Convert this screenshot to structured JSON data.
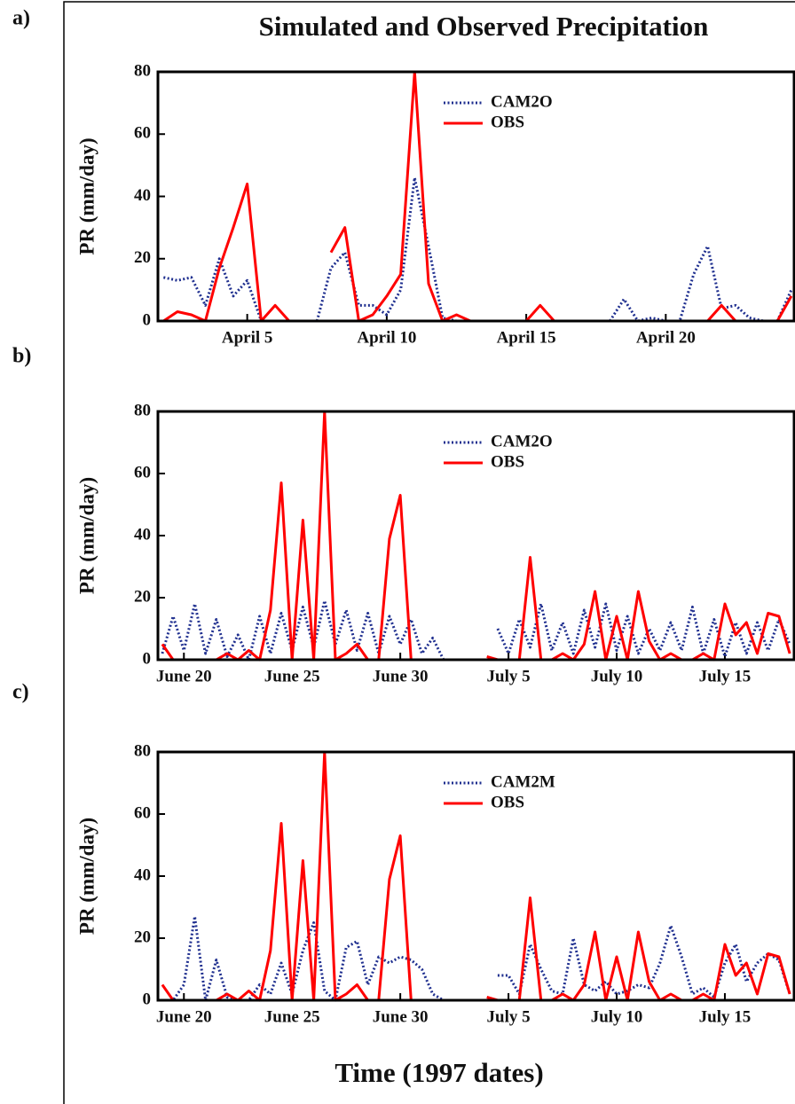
{
  "chart_data": [
    {
      "type": "line",
      "panel_label": "a)",
      "title": "Simulated and Observed Precipitation",
      "ylabel": "PR (mm/day)",
      "x": [
        2,
        2.5,
        3,
        3.5,
        4,
        4.5,
        5,
        5.5,
        6,
        6.5,
        7,
        7.5,
        8,
        8.5,
        9,
        9.5,
        10,
        10.5,
        11,
        11.5,
        12,
        12.5,
        13,
        13.5,
        14,
        14.5,
        15,
        15.5,
        16,
        16.5,
        17,
        17.5,
        18,
        18.5,
        19,
        19.5,
        20,
        20.5,
        21,
        21.5,
        22,
        22.5,
        23,
        23.5,
        24,
        24.5
      ],
      "series": [
        {
          "name": "CAM2O",
          "color": "#1f2f8f",
          "style": "dotted",
          "values": [
            14,
            13,
            14,
            5,
            20,
            8,
            13,
            0,
            null,
            null,
            null,
            0,
            17,
            22,
            5,
            5,
            2,
            10,
            46,
            24,
            1,
            0,
            0,
            null,
            null,
            null,
            null,
            null,
            null,
            null,
            null,
            null,
            0,
            7,
            0,
            1,
            0,
            0,
            15,
            24,
            4,
            5,
            1,
            0,
            0,
            10
          ]
        },
        {
          "name": "OBS",
          "color": "#ff0000",
          "style": "solid",
          "values": [
            0,
            3,
            2,
            0,
            17,
            30,
            44,
            0,
            5,
            0,
            null,
            null,
            22,
            30,
            0,
            2,
            8,
            15,
            80,
            12,
            0,
            2,
            0,
            null,
            null,
            null,
            0,
            5,
            0,
            null,
            null,
            null,
            null,
            null,
            null,
            null,
            0,
            0,
            0,
            0,
            5,
            0,
            null,
            null,
            0,
            8
          ]
        }
      ],
      "xlim": [
        1.8,
        24.6
      ],
      "ylim": [
        0,
        80
      ],
      "yticks": [
        0,
        20,
        40,
        60,
        80
      ],
      "xticks": [
        {
          "value": 5,
          "label": "April  5"
        },
        {
          "value": 10,
          "label": "April 10"
        },
        {
          "value": 15,
          "label": "April 15"
        },
        {
          "value": 20,
          "label": "April 20"
        }
      ],
      "legend": "upper center"
    },
    {
      "type": "line",
      "panel_label": "b)",
      "ylabel": "PR (mm/day)",
      "x": [
        19,
        19.5,
        20,
        20.5,
        21,
        21.5,
        22,
        22.5,
        23,
        23.5,
        24,
        24.5,
        25,
        25.5,
        26,
        26.5,
        27,
        27.5,
        28,
        28.5,
        29,
        29.5,
        30,
        30.5,
        31,
        31.5,
        32,
        32.5,
        33,
        33.5,
        34,
        34.5,
        35,
        35.5,
        36,
        36.5,
        37,
        37.5,
        38,
        38.5,
        39,
        39.5,
        40,
        40.5,
        41,
        41.5,
        42,
        42.5,
        43,
        43.5,
        44,
        44.5,
        45,
        45.5,
        46,
        46.5,
        47,
        47.5,
        48
      ],
      "series": [
        {
          "name": "CAM2O",
          "color": "#1f2f8f",
          "style": "dotted",
          "values": [
            2,
            14,
            3,
            18,
            2,
            13,
            1,
            8,
            0,
            14,
            2,
            15,
            3,
            17,
            4,
            19,
            5,
            16,
            3,
            15,
            2,
            14,
            5,
            13,
            2,
            7,
            0,
            null,
            null,
            null,
            null,
            10,
            2,
            13,
            4,
            18,
            3,
            12,
            2,
            16,
            4,
            18,
            3,
            14,
            2,
            10,
            3,
            12,
            3,
            17,
            2,
            13,
            1,
            12,
            2,
            12,
            3,
            13,
            5
          ]
        },
        {
          "name": "OBS",
          "color": "#ff0000",
          "style": "solid",
          "values": [
            5,
            0,
            0,
            0,
            0,
            0,
            2,
            0,
            3,
            0,
            16,
            57,
            0,
            45,
            0,
            80,
            0,
            2,
            5,
            0,
            0,
            39,
            53,
            0,
            0,
            0,
            null,
            null,
            null,
            null,
            1,
            0,
            0,
            0,
            33,
            0,
            0,
            2,
            0,
            5,
            22,
            0,
            14,
            0,
            22,
            6,
            0,
            2,
            0,
            0,
            2,
            0,
            18,
            8,
            12,
            2,
            15,
            14,
            2
          ]
        }
      ],
      "xlim": [
        18.8,
        48.2
      ],
      "ylim": [
        0,
        80
      ],
      "yticks": [
        0,
        20,
        40,
        60,
        80
      ],
      "xticks": [
        {
          "value": 20,
          "label": "June 20"
        },
        {
          "value": 25,
          "label": "June 25"
        },
        {
          "value": 30,
          "label": "June 30"
        },
        {
          "value": 35,
          "label": "July 5"
        },
        {
          "value": 40,
          "label": "July 10"
        },
        {
          "value": 45,
          "label": "July 15"
        }
      ],
      "legend": "upper center"
    },
    {
      "type": "line",
      "panel_label": "c)",
      "ylabel": "PR (mm/day)",
      "xlabel": "Time (1997 dates)",
      "x": [
        19,
        19.5,
        20,
        20.5,
        21,
        21.5,
        22,
        22.5,
        23,
        23.5,
        24,
        24.5,
        25,
        25.5,
        26,
        26.5,
        27,
        27.5,
        28,
        28.5,
        29,
        29.5,
        30,
        30.5,
        31,
        31.5,
        32,
        32.5,
        33,
        33.5,
        34,
        34.5,
        35,
        35.5,
        36,
        36.5,
        37,
        37.5,
        38,
        38.5,
        39,
        39.5,
        40,
        40.5,
        41,
        41.5,
        42,
        42.5,
        43,
        43.5,
        44,
        44.5,
        45,
        45.5,
        46,
        46.5,
        47,
        47.5,
        48
      ],
      "series": [
        {
          "name": "CAM2M",
          "color": "#1f2f8f",
          "style": "dotted",
          "values": [
            0,
            0,
            5,
            27,
            0,
            13,
            1,
            0,
            0,
            5,
            2,
            12,
            2,
            16,
            25,
            3,
            0,
            17,
            19,
            5,
            14,
            12,
            14,
            13,
            10,
            2,
            0,
            null,
            null,
            null,
            null,
            8,
            8,
            2,
            18,
            10,
            3,
            2,
            20,
            5,
            3,
            6,
            2,
            3,
            5,
            4,
            12,
            24,
            14,
            2,
            4,
            1,
            12,
            18,
            6,
            12,
            15,
            13,
            2
          ]
        },
        {
          "name": "OBS",
          "color": "#ff0000",
          "style": "solid",
          "values": [
            5,
            0,
            0,
            0,
            0,
            0,
            2,
            0,
            3,
            0,
            16,
            57,
            0,
            45,
            0,
            80,
            0,
            2,
            5,
            0,
            0,
            39,
            53,
            0,
            0,
            0,
            null,
            null,
            null,
            null,
            1,
            0,
            0,
            0,
            33,
            0,
            0,
            2,
            0,
            5,
            22,
            0,
            14,
            0,
            22,
            6,
            0,
            2,
            0,
            0,
            2,
            0,
            18,
            8,
            12,
            2,
            15,
            14,
            2
          ]
        }
      ],
      "xlim": [
        18.8,
        48.2
      ],
      "ylim": [
        0,
        80
      ],
      "yticks": [
        0,
        20,
        40,
        60,
        80
      ],
      "xticks": [
        {
          "value": 20,
          "label": "June 20"
        },
        {
          "value": 25,
          "label": "June 25"
        },
        {
          "value": 30,
          "label": "June 30"
        },
        {
          "value": 35,
          "label": "July 5"
        },
        {
          "value": 40,
          "label": "July 10"
        },
        {
          "value": 45,
          "label": "July 15"
        }
      ],
      "legend": "upper center"
    }
  ]
}
